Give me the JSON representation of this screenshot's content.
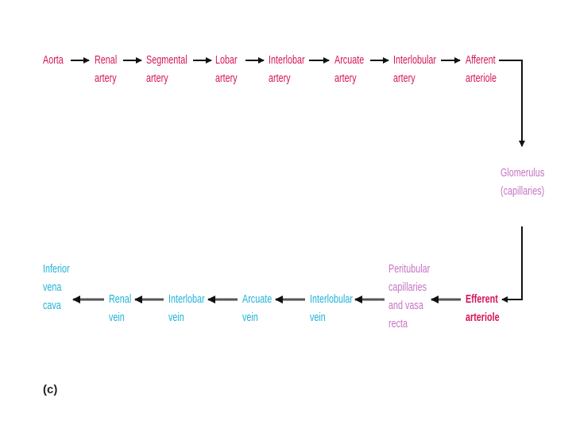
{
  "arterial": [
    {
      "name": "aorta",
      "lines": [
        "Aorta"
      ]
    },
    {
      "name": "renal-artery",
      "lines": [
        "Renal",
        "artery"
      ]
    },
    {
      "name": "segmental-artery",
      "lines": [
        "Segmental",
        "artery"
      ]
    },
    {
      "name": "lobar-artery",
      "lines": [
        "Lobar",
        "artery"
      ]
    },
    {
      "name": "interlobar-artery",
      "lines": [
        "Interlobar",
        "artery"
      ]
    },
    {
      "name": "arcuate-artery",
      "lines": [
        "Arcuate",
        "artery"
      ]
    },
    {
      "name": "interlobular-artery",
      "lines": [
        "Interlobular",
        "artery"
      ]
    },
    {
      "name": "afferent-arteriole",
      "lines": [
        "Afferent",
        "arteriole"
      ]
    }
  ],
  "glomerulus": {
    "lines": [
      "Glomerulus",
      "(capillaries)"
    ]
  },
  "efferent": {
    "lines": [
      "Efferent",
      "arteriole"
    ]
  },
  "peritubular": {
    "lines": [
      "Peritubular",
      "capillaries",
      "and vasa",
      "recta"
    ]
  },
  "venous": [
    {
      "name": "interlobular-vein",
      "lines": [
        "Interlobular",
        "vein"
      ]
    },
    {
      "name": "arcuate-vein",
      "lines": [
        "Arcuate",
        "vein"
      ]
    },
    {
      "name": "interlobar-vein",
      "lines": [
        "Interlobar",
        "vein"
      ]
    },
    {
      "name": "renal-vein",
      "lines": [
        "Renal",
        "vein"
      ]
    },
    {
      "name": "inferior-vena-cava",
      "lines": [
        "Inferior",
        "vena",
        "cava"
      ]
    }
  ],
  "caption": "(c)",
  "colors": {
    "artery": "#d4145a",
    "glomerulus": "#c573c4",
    "vein": "#1fb3da",
    "arrow": "#111111"
  }
}
